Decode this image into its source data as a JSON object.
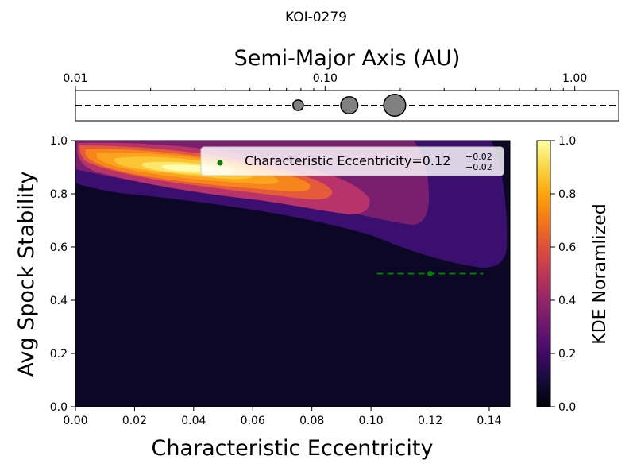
{
  "figure": {
    "title": "KOI-0279"
  },
  "chart_data": [
    {
      "type": "scatter",
      "xlabel": "Semi-Major Axis (AU)",
      "xscale": "log",
      "xlim": [
        0.01,
        1.5
      ],
      "ticks": [
        {
          "value": 0.01,
          "label": "0.01"
        },
        {
          "value": 0.1,
          "label": "0.10"
        },
        {
          "value": 1.0,
          "label": "1.00"
        }
      ],
      "reference_line": "dashed",
      "planets": [
        {
          "a": 0.078,
          "relative_size": 0.55
        },
        {
          "a": 0.125,
          "relative_size": 0.9
        },
        {
          "a": 0.19,
          "relative_size": 1.15
        }
      ],
      "colors": {
        "marker": "#808080",
        "edge": "#000000"
      }
    },
    {
      "type": "heatmap",
      "xlabel": "Characteristic Eccentricity",
      "ylabel": "Avg Spock Stability",
      "xlim": [
        0.0,
        0.147
      ],
      "ylim": [
        0.0,
        1.0
      ],
      "xticks": [
        "0.00",
        "0.02",
        "0.04",
        "0.06",
        "0.08",
        "0.10",
        "0.12",
        "0.14"
      ],
      "yticks": [
        "0.0",
        "0.2",
        "0.4",
        "0.6",
        "0.8",
        "1.0"
      ],
      "kde_peak": {
        "x": 0.035,
        "y": 0.905
      },
      "contour_levels": [
        0.1,
        0.2,
        0.3,
        0.4,
        0.5,
        0.6,
        0.7,
        0.8,
        0.9
      ],
      "marker": {
        "x": 0.12,
        "y": 0.5,
        "xerr_minus": 0.018,
        "xerr_plus": 0.018,
        "color": "#008000"
      },
      "legend": {
        "placement": "top-right",
        "label": "Characteristic Eccentricity=0.12",
        "sup": "+0.02",
        "sub": "−0.02"
      },
      "colorbar": {
        "label": "KDE Noramlized",
        "ticks": [
          "0.0",
          "0.2",
          "0.4",
          "0.6",
          "0.8",
          "1.0"
        ],
        "colormap": "inferno"
      }
    }
  ]
}
